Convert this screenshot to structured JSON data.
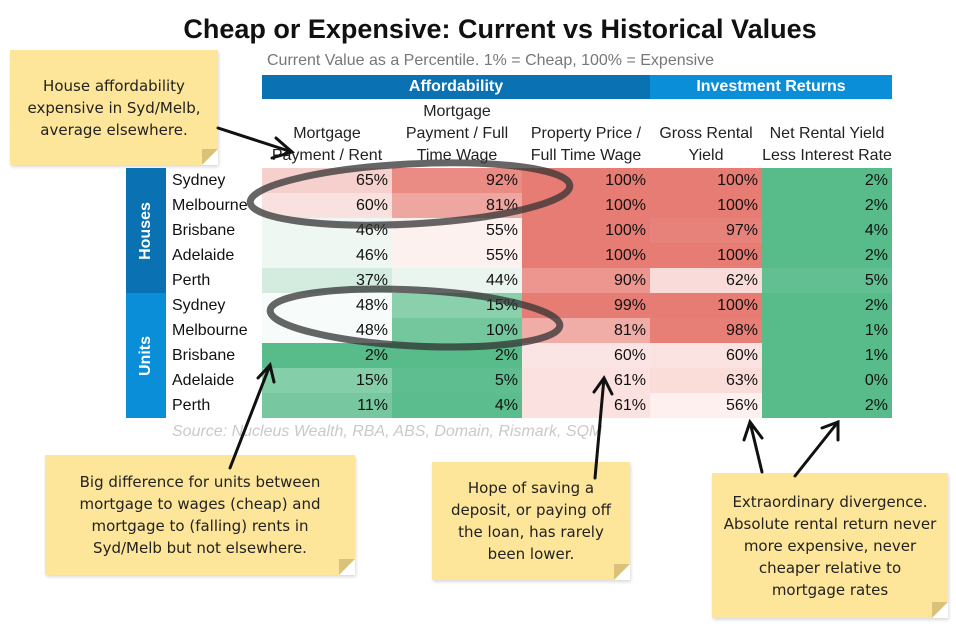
{
  "title": "Cheap or Expensive: Current vs Historical Values",
  "subtitle": "Current Value as a Percentile. 1% = Cheap, 100% = Expensive",
  "groups": {
    "affordability": "Affordability",
    "investment": "Investment Returns",
    "affordability_color": "#0a72b3",
    "investment_color": "#0b8ed8"
  },
  "chart_data": {
    "type": "heatmap",
    "columns": [
      "Mortgage Payment / Rent",
      "Mortgage Payment / Full Time Wage",
      "Property Price / Full Time Wage",
      "Gross Rental Yield",
      "Net Rental Yield Less Interest Rate"
    ],
    "sections": [
      "Houses",
      "Units"
    ],
    "rows": [
      {
        "section": "Houses",
        "city": "Sydney",
        "values": [
          "65%",
          "92%",
          "100%",
          "100%",
          "2%"
        ],
        "colors": [
          "#f6d0cd",
          "#ea8b84",
          "#e67c73",
          "#e67c73",
          "#57bb8a"
        ]
      },
      {
        "section": "Houses",
        "city": "Melbourne",
        "values": [
          "60%",
          "81%",
          "100%",
          "100%",
          "2%"
        ],
        "colors": [
          "#f9e1df",
          "#eea6a0",
          "#e67c73",
          "#e67c73",
          "#57bb8a"
        ]
      },
      {
        "section": "Houses",
        "city": "Brisbane",
        "values": [
          "46%",
          "55%",
          "100%",
          "97%",
          "4%"
        ],
        "colors": [
          "#eef7f2",
          "#fdf1f0",
          "#e67c73",
          "#e7827a",
          "#57bb8a"
        ]
      },
      {
        "section": "Houses",
        "city": "Adelaide",
        "values": [
          "46%",
          "55%",
          "100%",
          "100%",
          "2%"
        ],
        "colors": [
          "#eef7f2",
          "#fdf1f0",
          "#e67c73",
          "#e67c73",
          "#57bb8a"
        ]
      },
      {
        "section": "Houses",
        "city": "Perth",
        "values": [
          "37%",
          "44%",
          "90%",
          "62%",
          "5%"
        ],
        "colors": [
          "#d3ecdf",
          "#eaf5ef",
          "#ec968f",
          "#f9dcda",
          "#62bf92"
        ]
      },
      {
        "section": "Units",
        "city": "Sydney",
        "values": [
          "48%",
          "15%",
          "99%",
          "100%",
          "2%"
        ],
        "colors": [
          "#f7fbf9",
          "#8ad0ac",
          "#e67d74",
          "#e67c73",
          "#57bb8a"
        ]
      },
      {
        "section": "Units",
        "city": "Melbourne",
        "values": [
          "48%",
          "10%",
          "81%",
          "98%",
          "1%"
        ],
        "colors": [
          "#f7fbf9",
          "#74c79d",
          "#f0aca7",
          "#e77f76",
          "#57bb8a"
        ]
      },
      {
        "section": "Units",
        "city": "Brisbane",
        "values": [
          "2%",
          "2%",
          "60%",
          "60%",
          "1%"
        ],
        "colors": [
          "#57bb8a",
          "#57bb8a",
          "#fbe5e4",
          "#fae3e1",
          "#57bb8a"
        ]
      },
      {
        "section": "Units",
        "city": "Adelaide",
        "values": [
          "15%",
          "5%",
          "61%",
          "63%",
          "0%"
        ],
        "colors": [
          "#85ceaa",
          "#5ebe8f",
          "#fbe1df",
          "#fadcd9",
          "#57bb8a"
        ]
      },
      {
        "section": "Units",
        "city": "Perth",
        "values": [
          "11%",
          "4%",
          "61%",
          "56%",
          "2%"
        ],
        "colors": [
          "#77c8a0",
          "#5bbd8d",
          "#fbe1df",
          "#fdf0ef",
          "#57bb8a"
        ]
      }
    ]
  },
  "section_colors": {
    "Houses": "#0a72b3",
    "Units": "#0b8ed8"
  },
  "source": "Source: Nucleus Wealth, RBA, ABS, Domain, Rismark, SQM",
  "notes": [
    "House affordability expensive in Syd/Melb, average elsewhere.",
    "Big difference for units between mortgage to wages (cheap) and mortgage to (falling) rents in Syd/Melb but not elsewhere.",
    "Hope of saving a deposit, or paying off the loan, has rarely been lower.",
    "Extraordinary divergence. Absolute rental return never more expensive, never cheaper relative to mortgage rates"
  ]
}
